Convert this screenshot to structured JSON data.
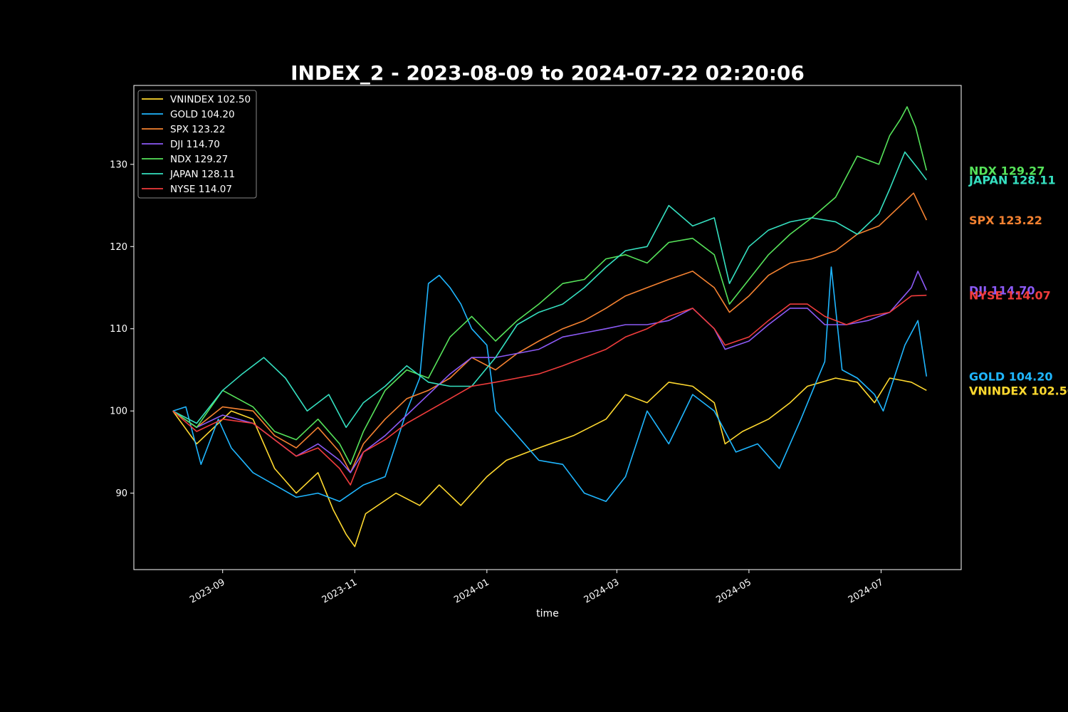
{
  "chart_data": {
    "type": "line",
    "title": "INDEX_2 - 2023-08-09 to 2024-07-22 02:20:06",
    "xlabel": "time",
    "ylabel": "",
    "x_ticks": [
      "2023-09",
      "2023-11",
      "2024-01",
      "2024-03",
      "2024-05",
      "2024-07"
    ],
    "y_ticks": [
      90,
      100,
      110,
      120,
      130
    ],
    "xlim": [
      "2023-07-22",
      "2024-08-07"
    ],
    "ylim": [
      80.7,
      139.6
    ],
    "grid": false,
    "legend_position": "upper-left",
    "background": "#000000",
    "series": [
      {
        "name": "VNINDEX",
        "last": "102.50",
        "color": "#FFD92F",
        "points": [
          [
            "2023-08-09",
            100
          ],
          [
            "2023-08-20",
            96
          ],
          [
            "2023-09-05",
            100
          ],
          [
            "2023-09-15",
            99
          ],
          [
            "2023-09-25",
            93
          ],
          [
            "2023-10-05",
            90
          ],
          [
            "2023-10-15",
            92.5
          ],
          [
            "2023-10-22",
            88
          ],
          [
            "2023-10-28",
            85
          ],
          [
            "2023-11-01",
            83.5
          ],
          [
            "2023-11-06",
            87.5
          ],
          [
            "2023-11-20",
            90
          ],
          [
            "2023-12-01",
            88.5
          ],
          [
            "2023-12-10",
            91
          ],
          [
            "2023-12-20",
            88.5
          ],
          [
            "2024-01-01",
            92
          ],
          [
            "2024-01-10",
            94
          ],
          [
            "2024-01-25",
            95.5
          ],
          [
            "2024-02-10",
            97
          ],
          [
            "2024-02-25",
            99
          ],
          [
            "2024-03-05",
            102
          ],
          [
            "2024-03-15",
            101
          ],
          [
            "2024-03-25",
            103.5
          ],
          [
            "2024-04-05",
            103
          ],
          [
            "2024-04-15",
            101
          ],
          [
            "2024-04-20",
            96
          ],
          [
            "2024-04-28",
            97.5
          ],
          [
            "2024-05-10",
            99
          ],
          [
            "2024-05-20",
            101
          ],
          [
            "2024-05-28",
            103
          ],
          [
            "2024-06-10",
            104
          ],
          [
            "2024-06-20",
            103.5
          ],
          [
            "2024-06-28",
            101
          ],
          [
            "2024-07-05",
            104
          ],
          [
            "2024-07-15",
            103.5
          ],
          [
            "2024-07-22",
            102.5
          ]
        ]
      },
      {
        "name": "GOLD",
        "last": "104.20",
        "color": "#1FB6FF",
        "points": [
          [
            "2023-08-09",
            100
          ],
          [
            "2023-08-15",
            100.5
          ],
          [
            "2023-08-22",
            93.5
          ],
          [
            "2023-08-30",
            99
          ],
          [
            "2023-09-05",
            95.5
          ],
          [
            "2023-09-15",
            92.5
          ],
          [
            "2023-09-25",
            91
          ],
          [
            "2023-10-05",
            89.5
          ],
          [
            "2023-10-15",
            90
          ],
          [
            "2023-10-25",
            89
          ],
          [
            "2023-11-05",
            91
          ],
          [
            "2023-11-15",
            92
          ],
          [
            "2023-11-25",
            100
          ],
          [
            "2023-12-01",
            104
          ],
          [
            "2023-12-05",
            115.5
          ],
          [
            "2023-12-10",
            116.5
          ],
          [
            "2023-12-15",
            115
          ],
          [
            "2023-12-20",
            113
          ],
          [
            "2023-12-25",
            110
          ],
          [
            "2024-01-01",
            108
          ],
          [
            "2024-01-05",
            100
          ],
          [
            "2024-01-15",
            97
          ],
          [
            "2024-01-25",
            94
          ],
          [
            "2024-02-05",
            93.5
          ],
          [
            "2024-02-15",
            90
          ],
          [
            "2024-02-25",
            89
          ],
          [
            "2024-03-05",
            92
          ],
          [
            "2024-03-15",
            100
          ],
          [
            "2024-03-25",
            96
          ],
          [
            "2024-04-05",
            102
          ],
          [
            "2024-04-15",
            100
          ],
          [
            "2024-04-25",
            95
          ],
          [
            "2024-05-05",
            96
          ],
          [
            "2024-05-15",
            93
          ],
          [
            "2024-05-25",
            99
          ],
          [
            "2024-06-01",
            103.5
          ],
          [
            "2024-06-05",
            106
          ],
          [
            "2024-06-08",
            117.5
          ],
          [
            "2024-06-13",
            105
          ],
          [
            "2024-06-20",
            104
          ],
          [
            "2024-06-28",
            102
          ],
          [
            "2024-07-02",
            100
          ],
          [
            "2024-07-07",
            104
          ],
          [
            "2024-07-12",
            108
          ],
          [
            "2024-07-18",
            111
          ],
          [
            "2024-07-22",
            104.2
          ]
        ]
      },
      {
        "name": "SPX",
        "last": "123.22",
        "color": "#F58231",
        "points": [
          [
            "2023-08-09",
            100
          ],
          [
            "2023-08-20",
            98
          ],
          [
            "2023-09-01",
            100.5
          ],
          [
            "2023-09-15",
            100
          ],
          [
            "2023-09-25",
            97
          ],
          [
            "2023-10-05",
            95.5
          ],
          [
            "2023-10-15",
            98
          ],
          [
            "2023-10-25",
            95
          ],
          [
            "2023-10-30",
            92.5
          ],
          [
            "2023-11-05",
            96
          ],
          [
            "2023-11-15",
            99
          ],
          [
            "2023-11-25",
            101.5
          ],
          [
            "2023-12-05",
            102.5
          ],
          [
            "2023-12-15",
            104
          ],
          [
            "2023-12-25",
            106.5
          ],
          [
            "2024-01-05",
            105
          ],
          [
            "2024-01-15",
            107
          ],
          [
            "2024-01-25",
            108.5
          ],
          [
            "2024-02-05",
            110
          ],
          [
            "2024-02-15",
            111
          ],
          [
            "2024-02-25",
            112.5
          ],
          [
            "2024-03-05",
            114
          ],
          [
            "2024-03-15",
            115
          ],
          [
            "2024-03-25",
            116
          ],
          [
            "2024-04-05",
            117
          ],
          [
            "2024-04-15",
            115
          ],
          [
            "2024-04-22",
            112
          ],
          [
            "2024-05-01",
            114
          ],
          [
            "2024-05-10",
            116.5
          ],
          [
            "2024-05-20",
            118
          ],
          [
            "2024-05-30",
            118.5
          ],
          [
            "2024-06-10",
            119.5
          ],
          [
            "2024-06-20",
            121.5
          ],
          [
            "2024-06-30",
            122.5
          ],
          [
            "2024-07-10",
            125
          ],
          [
            "2024-07-16",
            126.5
          ],
          [
            "2024-07-22",
            123.22
          ]
        ]
      },
      {
        "name": "DJI",
        "last": "114.70",
        "color": "#8C5AF6",
        "points": [
          [
            "2023-08-09",
            100
          ],
          [
            "2023-08-20",
            98
          ],
          [
            "2023-09-01",
            99.5
          ],
          [
            "2023-09-15",
            98.5
          ],
          [
            "2023-09-25",
            96.5
          ],
          [
            "2023-10-05",
            94.5
          ],
          [
            "2023-10-15",
            96
          ],
          [
            "2023-10-25",
            94
          ],
          [
            "2023-10-30",
            92.5
          ],
          [
            "2023-11-05",
            95
          ],
          [
            "2023-11-15",
            97
          ],
          [
            "2023-11-25",
            99.5
          ],
          [
            "2023-12-05",
            102
          ],
          [
            "2023-12-15",
            104.5
          ],
          [
            "2023-12-25",
            106.5
          ],
          [
            "2024-01-05",
            106.5
          ],
          [
            "2024-01-15",
            107
          ],
          [
            "2024-01-25",
            107.5
          ],
          [
            "2024-02-05",
            109
          ],
          [
            "2024-02-15",
            109.5
          ],
          [
            "2024-02-25",
            110
          ],
          [
            "2024-03-05",
            110.5
          ],
          [
            "2024-03-15",
            110.5
          ],
          [
            "2024-03-25",
            111
          ],
          [
            "2024-04-05",
            112.5
          ],
          [
            "2024-04-15",
            110
          ],
          [
            "2024-04-20",
            107.5
          ],
          [
            "2024-05-01",
            108.5
          ],
          [
            "2024-05-10",
            110.5
          ],
          [
            "2024-05-20",
            112.5
          ],
          [
            "2024-05-28",
            112.5
          ],
          [
            "2024-06-05",
            110.5
          ],
          [
            "2024-06-15",
            110.5
          ],
          [
            "2024-06-25",
            111
          ],
          [
            "2024-07-05",
            112
          ],
          [
            "2024-07-15",
            115
          ],
          [
            "2024-07-18",
            117
          ],
          [
            "2024-07-22",
            114.7
          ]
        ]
      },
      {
        "name": "NDX",
        "last": "129.27",
        "color": "#56E35A",
        "points": [
          [
            "2023-08-09",
            100
          ],
          [
            "2023-08-20",
            98
          ],
          [
            "2023-09-01",
            102.5
          ],
          [
            "2023-09-15",
            100.5
          ],
          [
            "2023-09-25",
            97.5
          ],
          [
            "2023-10-05",
            96.5
          ],
          [
            "2023-10-15",
            99
          ],
          [
            "2023-10-25",
            96
          ],
          [
            "2023-10-30",
            93.5
          ],
          [
            "2023-11-05",
            97.5
          ],
          [
            "2023-11-15",
            102.5
          ],
          [
            "2023-11-25",
            105
          ],
          [
            "2023-12-05",
            104
          ],
          [
            "2023-12-15",
            109
          ],
          [
            "2023-12-25",
            111.5
          ],
          [
            "2024-01-05",
            108.5
          ],
          [
            "2024-01-15",
            111
          ],
          [
            "2024-01-25",
            113
          ],
          [
            "2024-02-05",
            115.5
          ],
          [
            "2024-02-15",
            116
          ],
          [
            "2024-02-25",
            118.5
          ],
          [
            "2024-03-05",
            119
          ],
          [
            "2024-03-15",
            118
          ],
          [
            "2024-03-25",
            120.5
          ],
          [
            "2024-04-05",
            121
          ],
          [
            "2024-04-15",
            119
          ],
          [
            "2024-04-22",
            113
          ],
          [
            "2024-05-01",
            116
          ],
          [
            "2024-05-10",
            119
          ],
          [
            "2024-05-20",
            121.5
          ],
          [
            "2024-05-30",
            123.5
          ],
          [
            "2024-06-10",
            126
          ],
          [
            "2024-06-20",
            131
          ],
          [
            "2024-06-30",
            130
          ],
          [
            "2024-07-05",
            133.5
          ],
          [
            "2024-07-10",
            135.5
          ],
          [
            "2024-07-13",
            137
          ],
          [
            "2024-07-17",
            134.5
          ],
          [
            "2024-07-22",
            129.27
          ]
        ]
      },
      {
        "name": "JAPAN",
        "last": "128.11",
        "color": "#35E0C0",
        "points": [
          [
            "2023-08-09",
            100
          ],
          [
            "2023-08-20",
            98.5
          ],
          [
            "2023-09-01",
            102.5
          ],
          [
            "2023-09-10",
            104.5
          ],
          [
            "2023-09-20",
            106.5
          ],
          [
            "2023-09-30",
            104
          ],
          [
            "2023-10-10",
            100
          ],
          [
            "2023-10-20",
            102
          ],
          [
            "2023-10-28",
            98
          ],
          [
            "2023-11-05",
            101
          ],
          [
            "2023-11-15",
            103
          ],
          [
            "2023-11-25",
            105.5
          ],
          [
            "2023-12-05",
            103.5
          ],
          [
            "2023-12-15",
            103
          ],
          [
            "2023-12-25",
            103
          ],
          [
            "2024-01-05",
            106.5
          ],
          [
            "2024-01-15",
            110.5
          ],
          [
            "2024-01-25",
            112
          ],
          [
            "2024-02-05",
            113
          ],
          [
            "2024-02-15",
            115
          ],
          [
            "2024-02-25",
            117.5
          ],
          [
            "2024-03-05",
            119.5
          ],
          [
            "2024-03-15",
            120
          ],
          [
            "2024-03-25",
            125
          ],
          [
            "2024-04-05",
            122.5
          ],
          [
            "2024-04-15",
            123.5
          ],
          [
            "2024-04-22",
            115.5
          ],
          [
            "2024-05-01",
            120
          ],
          [
            "2024-05-10",
            122
          ],
          [
            "2024-05-20",
            123
          ],
          [
            "2024-05-30",
            123.5
          ],
          [
            "2024-06-10",
            123
          ],
          [
            "2024-06-20",
            121.5
          ],
          [
            "2024-06-30",
            124
          ],
          [
            "2024-07-05",
            127
          ],
          [
            "2024-07-12",
            131.5
          ],
          [
            "2024-07-18",
            129.5
          ],
          [
            "2024-07-22",
            128.11
          ]
        ]
      },
      {
        "name": "NYSE",
        "last": "114.07",
        "color": "#F03C3C",
        "points": [
          [
            "2023-08-09",
            100
          ],
          [
            "2023-08-20",
            97.5
          ],
          [
            "2023-09-01",
            99
          ],
          [
            "2023-09-15",
            98.5
          ],
          [
            "2023-09-25",
            96.5
          ],
          [
            "2023-10-05",
            94.5
          ],
          [
            "2023-10-15",
            95.5
          ],
          [
            "2023-10-25",
            93
          ],
          [
            "2023-10-30",
            91
          ],
          [
            "2023-11-05",
            95
          ],
          [
            "2023-11-15",
            96.5
          ],
          [
            "2023-11-25",
            98.5
          ],
          [
            "2023-12-05",
            100
          ],
          [
            "2023-12-15",
            101.5
          ],
          [
            "2023-12-25",
            103
          ],
          [
            "2024-01-05",
            103.5
          ],
          [
            "2024-01-15",
            104
          ],
          [
            "2024-01-25",
            104.5
          ],
          [
            "2024-02-05",
            105.5
          ],
          [
            "2024-02-15",
            106.5
          ],
          [
            "2024-02-25",
            107.5
          ],
          [
            "2024-03-05",
            109
          ],
          [
            "2024-03-15",
            110
          ],
          [
            "2024-03-25",
            111.5
          ],
          [
            "2024-04-05",
            112.5
          ],
          [
            "2024-04-15",
            110
          ],
          [
            "2024-04-20",
            108
          ],
          [
            "2024-05-01",
            109
          ],
          [
            "2024-05-10",
            111
          ],
          [
            "2024-05-20",
            113
          ],
          [
            "2024-05-28",
            113
          ],
          [
            "2024-06-05",
            111.5
          ],
          [
            "2024-06-15",
            110.5
          ],
          [
            "2024-06-25",
            111.5
          ],
          [
            "2024-07-05",
            112
          ],
          [
            "2024-07-15",
            114
          ],
          [
            "2024-07-22",
            114.07
          ]
        ]
      }
    ]
  }
}
